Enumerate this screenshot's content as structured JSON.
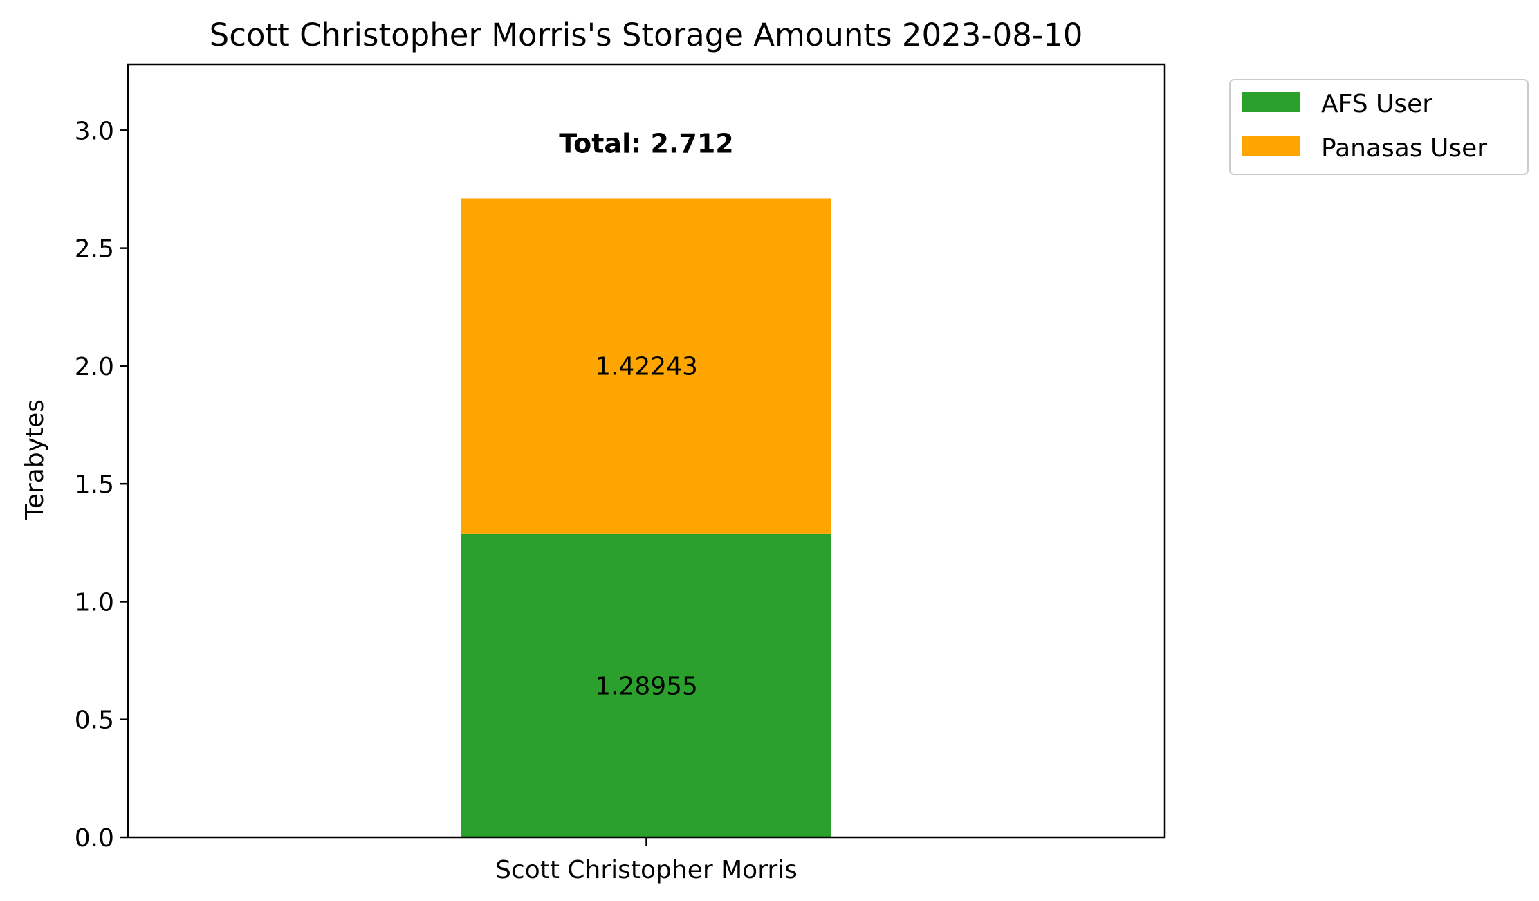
{
  "chart_data": {
    "type": "bar",
    "stacked": true,
    "title": "Scott Christopher Morris's Storage Amounts 2023-08-10",
    "xlabel": "",
    "ylabel": "Terabytes",
    "categories": [
      "Scott Christopher Morris"
    ],
    "ylim": [
      0,
      3.28
    ],
    "yticks": [
      0.0,
      0.5,
      1.0,
      1.5,
      2.0,
      2.5,
      3.0
    ],
    "ytick_labels": [
      "0.0",
      "0.5",
      "1.0",
      "1.5",
      "2.0",
      "2.5",
      "3.0"
    ],
    "series": [
      {
        "name": "AFS User",
        "values": [
          1.28955
        ],
        "labels": [
          "1.28955"
        ],
        "color": "#2ca02c"
      },
      {
        "name": "Panasas User",
        "values": [
          1.42243
        ],
        "labels": [
          "1.42243"
        ],
        "color": "#ffa500"
      }
    ],
    "total": {
      "label": "Total: 2.712",
      "value": 2.712
    },
    "legend_position": "outside-top-right",
    "grid": false
  }
}
